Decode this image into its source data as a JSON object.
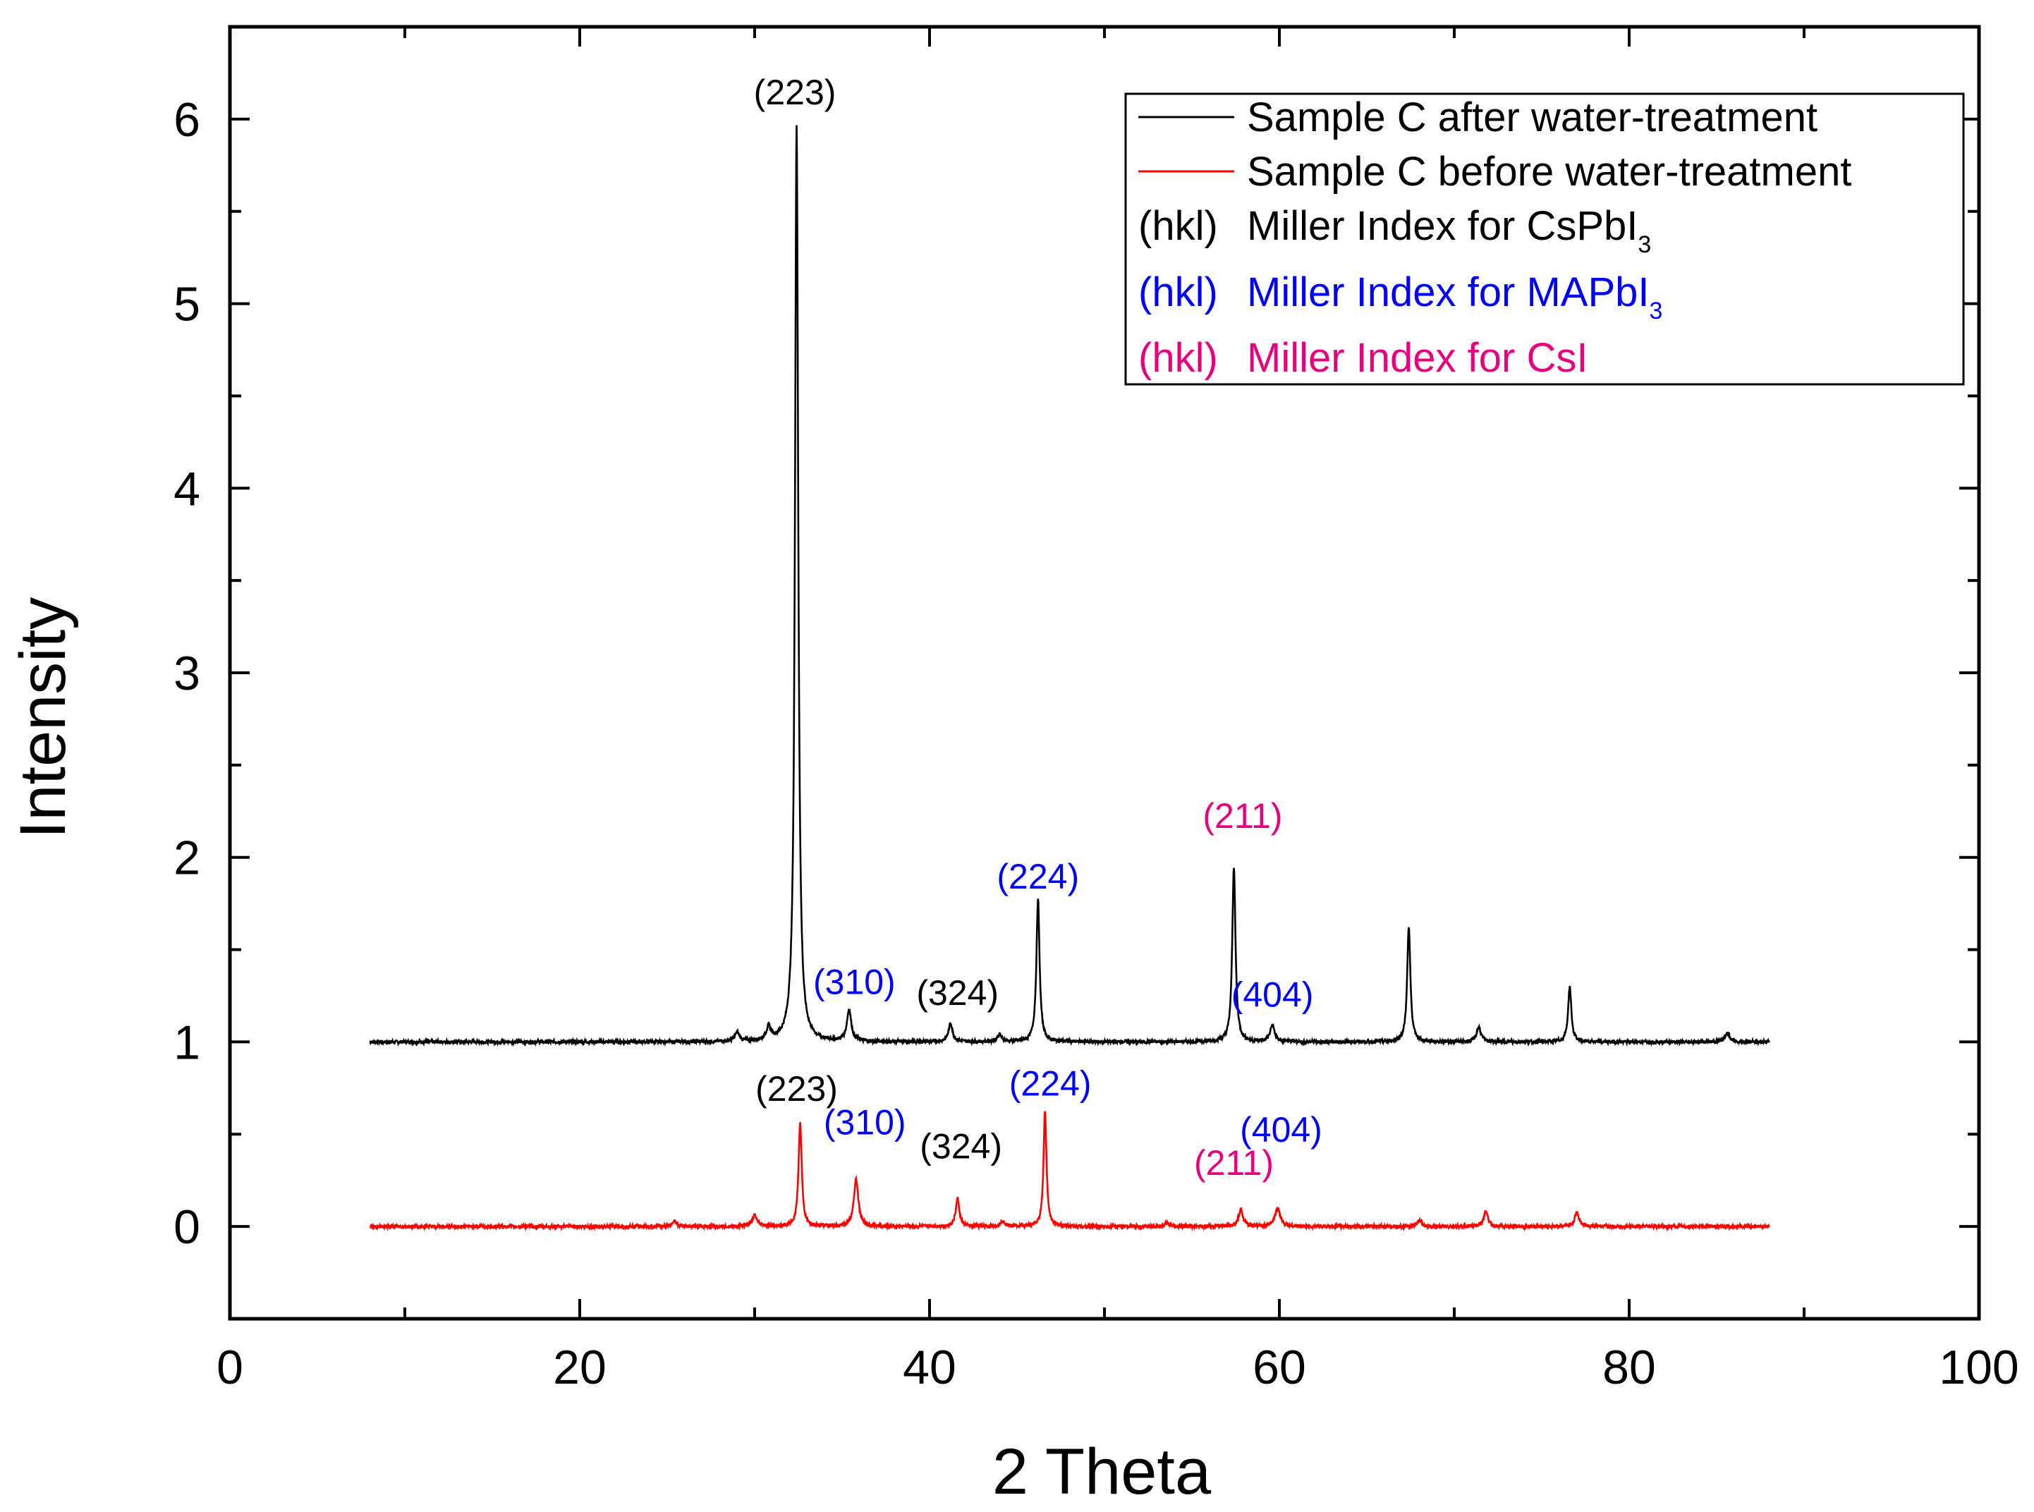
{
  "chart_data": {
    "type": "line",
    "title": "",
    "xlabel": "2 Theta",
    "ylabel": "Intensity",
    "xlim": [
      0,
      100
    ],
    "ylim": [
      -0.5,
      6.5
    ],
    "xticks": [
      0,
      20,
      40,
      60,
      80,
      100
    ],
    "yticks": [
      0,
      1,
      2,
      3,
      4,
      5,
      6
    ],
    "x_range": [
      8,
      88
    ],
    "colors": {
      "axis": "#000000",
      "black": "#000000",
      "red": "#ff0000",
      "blue": "#0000ff",
      "magenta": "#e6007e"
    },
    "series": [
      {
        "name": "Sample C after water-treatment",
        "color": "#000000",
        "baseline": 1.0,
        "peaks": [
          {
            "x": 29.0,
            "h": 0.05,
            "w": 0.3
          },
          {
            "x": 30.8,
            "h": 0.07,
            "w": 0.3
          },
          {
            "x": 32.4,
            "h": 4.97,
            "w": 0.22
          },
          {
            "x": 35.4,
            "h": 0.17,
            "w": 0.3
          },
          {
            "x": 41.2,
            "h": 0.1,
            "w": 0.28
          },
          {
            "x": 44.0,
            "h": 0.04,
            "w": 0.3
          },
          {
            "x": 46.2,
            "h": 0.77,
            "w": 0.22
          },
          {
            "x": 57.4,
            "h": 0.95,
            "w": 0.22
          },
          {
            "x": 59.6,
            "h": 0.09,
            "w": 0.3
          },
          {
            "x": 67.4,
            "h": 0.62,
            "w": 0.22
          },
          {
            "x": 71.4,
            "h": 0.08,
            "w": 0.3
          },
          {
            "x": 76.6,
            "h": 0.3,
            "w": 0.22
          },
          {
            "x": 85.6,
            "h": 0.05,
            "w": 0.3
          }
        ]
      },
      {
        "name": "Sample C before water-treatment",
        "color": "#ff0000",
        "baseline": 0.0,
        "peaks": [
          {
            "x": 25.4,
            "h": 0.03,
            "w": 0.3
          },
          {
            "x": 30.0,
            "h": 0.06,
            "w": 0.35
          },
          {
            "x": 32.6,
            "h": 0.56,
            "w": 0.22
          },
          {
            "x": 35.8,
            "h": 0.26,
            "w": 0.3
          },
          {
            "x": 41.6,
            "h": 0.15,
            "w": 0.25
          },
          {
            "x": 44.2,
            "h": 0.03,
            "w": 0.3
          },
          {
            "x": 46.6,
            "h": 0.63,
            "w": 0.2
          },
          {
            "x": 53.6,
            "h": 0.02,
            "w": 0.3
          },
          {
            "x": 57.8,
            "h": 0.09,
            "w": 0.3
          },
          {
            "x": 59.9,
            "h": 0.1,
            "w": 0.35
          },
          {
            "x": 68.0,
            "h": 0.03,
            "w": 0.3
          },
          {
            "x": 71.8,
            "h": 0.08,
            "w": 0.3
          },
          {
            "x": 77.0,
            "h": 0.08,
            "w": 0.28
          }
        ]
      }
    ],
    "annotations": [
      {
        "text": "(223)",
        "x": 32.3,
        "y": 6.08,
        "color": "#000000"
      },
      {
        "text": "(310)",
        "x": 35.7,
        "y": 1.26,
        "color": "#0000ff"
      },
      {
        "text": "(324)",
        "x": 41.6,
        "y": 1.2,
        "color": "#000000"
      },
      {
        "text": "(224)",
        "x": 46.2,
        "y": 1.83,
        "color": "#0000ff"
      },
      {
        "text": "(211)",
        "x": 57.9,
        "y": 2.16,
        "color": "#e6007e"
      },
      {
        "text": "(404)",
        "x": 59.6,
        "y": 1.19,
        "color": "#0000ff"
      },
      {
        "text": "(223)",
        "x": 32.4,
        "y": 0.68,
        "color": "#000000"
      },
      {
        "text": "(310)",
        "x": 36.3,
        "y": 0.5,
        "color": "#0000ff"
      },
      {
        "text": "(324)",
        "x": 41.8,
        "y": 0.37,
        "color": "#000000"
      },
      {
        "text": "(224)",
        "x": 46.9,
        "y": 0.71,
        "color": "#0000ff"
      },
      {
        "text": "(211)",
        "x": 57.4,
        "y": 0.28,
        "color": "#e6007e"
      },
      {
        "text": "(404)",
        "x": 60.1,
        "y": 0.46,
        "color": "#0000ff"
      }
    ],
    "legend": {
      "position": "top-right",
      "entries": [
        {
          "type": "line",
          "color": "#000000",
          "label": "Sample C after water-treatment"
        },
        {
          "type": "line",
          "color": "#ff0000",
          "label": "Sample C before water-treatment"
        },
        {
          "type": "text",
          "color": "#000000",
          "marker": "(hkl)",
          "label": "Miller Index for CsPbI",
          "sub": "3"
        },
        {
          "type": "text",
          "color": "#0000ff",
          "marker": "(hkl)",
          "label": "Miller Index for MAPbI",
          "sub": "3"
        },
        {
          "type": "text",
          "color": "#e6007e",
          "marker": "(hkl)",
          "label": "Miller Index for CsI",
          "sub": ""
        }
      ]
    }
  }
}
